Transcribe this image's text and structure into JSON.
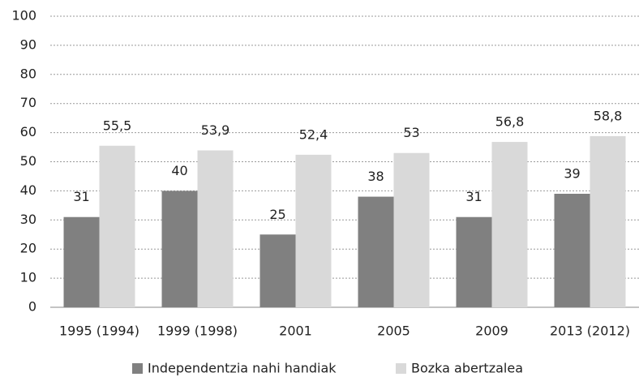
{
  "chart_data": {
    "type": "bar",
    "categories": [
      "1995 (1994)",
      "1999 (1998)",
      "2001",
      "2005",
      "2009",
      "2013 (2012)"
    ],
    "series": [
      {
        "name": "Independentzia nahi handiak",
        "color": "#808080",
        "values": [
          31,
          40,
          25,
          38,
          31,
          39
        ]
      },
      {
        "name": "Bozka abertzalea",
        "color": "#d9d9d9",
        "values": [
          55.5,
          53.9,
          52.4,
          53,
          56.8,
          58.8
        ],
        "value_labels": [
          "55,5",
          "53,9",
          "52,4",
          "53",
          "56,8",
          "58,8"
        ]
      }
    ],
    "ylim": [
      0,
      100
    ],
    "yticks": [
      0,
      10,
      20,
      30,
      40,
      50,
      60,
      70,
      80,
      90,
      100
    ],
    "grid": true,
    "legend": "bottom"
  }
}
